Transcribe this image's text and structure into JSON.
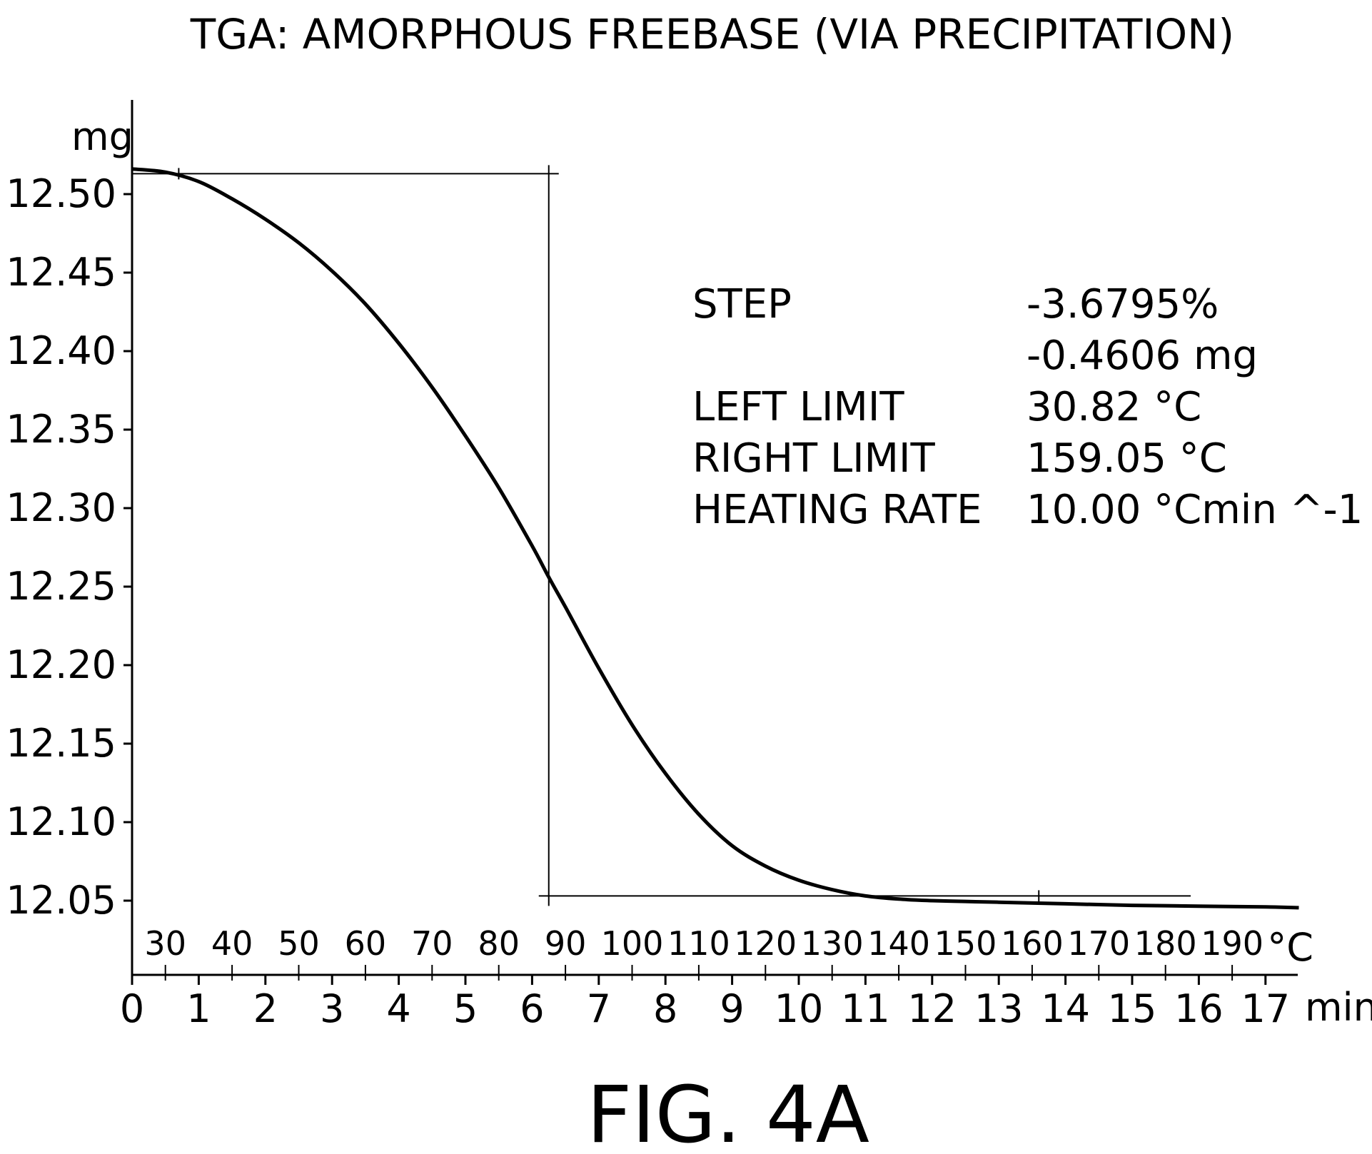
{
  "chart_data": {
    "type": "line",
    "title": "TGA: AMORPHOUS FREEBASE (VIA PRECIPITATION)",
    "figure_label": "FIG. 4A",
    "y_unit": "mg",
    "x_unit": "min",
    "temp_unit": "°C",
    "ylim": [
      12.035,
      12.54
    ],
    "xlim": [
      0,
      17.5
    ],
    "y_ticks": [
      "12.50",
      "12.45",
      "12.40",
      "12.35",
      "12.30",
      "12.25",
      "12.20",
      "12.15",
      "12.10",
      "12.05"
    ],
    "x_ticks": [
      "0",
      "1",
      "2",
      "3",
      "4",
      "5",
      "6",
      "7",
      "8",
      "9",
      "10",
      "11",
      "12",
      "13",
      "14",
      "15",
      "16",
      "17"
    ],
    "temp_ticks": [
      "30",
      "40",
      "50",
      "60",
      "70",
      "80",
      "90",
      "100",
      "110",
      "120",
      "130",
      "140",
      "150",
      "160",
      "170",
      "180",
      "190"
    ],
    "grid": false,
    "series": [
      {
        "x": [
          0,
          0.5,
          1,
          1.5,
          2,
          2.5,
          3,
          3.5,
          4,
          4.5,
          5,
          5.5,
          6,
          6.25,
          6.5,
          7,
          7.5,
          8,
          8.5,
          9,
          9.5,
          10,
          10.5,
          11,
          11.5,
          12,
          12.5,
          13,
          14,
          15,
          16,
          17,
          17.5
        ],
        "y": [
          12.516,
          12.514,
          12.508,
          12.497,
          12.484,
          12.469,
          12.451,
          12.43,
          12.405,
          12.377,
          12.346,
          12.313,
          12.276,
          12.256,
          12.237,
          12.198,
          12.162,
          12.131,
          12.105,
          12.085,
          12.072,
          12.063,
          12.057,
          12.053,
          12.051,
          12.05,
          12.0495,
          12.049,
          12.048,
          12.047,
          12.0465,
          12.046,
          12.0455
        ]
      }
    ],
    "step_limits": {
      "left_x": 0,
      "right_x": 6.25,
      "upper_y": 12.513,
      "lower_y": 12.053
    },
    "annotations": [
      {
        "label": "STEP",
        "value": "-3.6795%"
      },
      {
        "label": "",
        "value": "-0.4606 mg"
      },
      {
        "label": "LEFT LIMIT",
        "value": "30.82 °C"
      },
      {
        "label": "RIGHT LIMIT",
        "value": "159.05 °C"
      },
      {
        "label": "HEATING RATE",
        "value": "10.00 °Cmin ^-1"
      }
    ]
  }
}
